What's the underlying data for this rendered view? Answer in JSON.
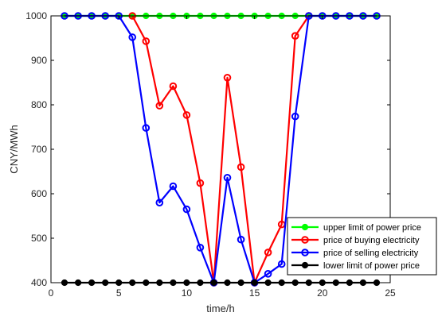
{
  "chart_data": {
    "type": "line",
    "xlabel": "time/h",
    "ylabel": "CNY/MWh",
    "xlim": [
      0,
      25
    ],
    "ylim": [
      400,
      1000
    ],
    "xticks": [
      0,
      5,
      10,
      15,
      20,
      25
    ],
    "yticks": [
      400,
      500,
      600,
      700,
      800,
      900,
      1000
    ],
    "grid": false,
    "legend_position": "bottom-right",
    "series": [
      {
        "name": "upper limit of power price",
        "color": "#00ff00",
        "marker": "filled-circle",
        "x": [
          1,
          2,
          3,
          4,
          5,
          6,
          7,
          8,
          9,
          10,
          11,
          12,
          13,
          14,
          15,
          16,
          17,
          18,
          19,
          20,
          21,
          22,
          23,
          24
        ],
        "y": [
          1000,
          1000,
          1000,
          1000,
          1000,
          1000,
          1000,
          1000,
          1000,
          1000,
          1000,
          1000,
          1000,
          1000,
          1000,
          1000,
          1000,
          1000,
          1000,
          1000,
          1000,
          1000,
          1000,
          1000
        ]
      },
      {
        "name": "price of buying electricity",
        "color": "#ff0000",
        "marker": "open-circle",
        "x": [
          6,
          7,
          8,
          9,
          10,
          11,
          12,
          13,
          14,
          15,
          16,
          17,
          18,
          19
        ],
        "y": [
          1000,
          943,
          798,
          842,
          777,
          624,
          400,
          861,
          660,
          400,
          468,
          531,
          955,
          1000
        ]
      },
      {
        "name": " price of selling electricity",
        "color": "#0000ff",
        "marker": "open-circle",
        "x": [
          1,
          2,
          3,
          4,
          5,
          6,
          7,
          8,
          9,
          10,
          11,
          12,
          13,
          14,
          15,
          16,
          17,
          18,
          19,
          20,
          21,
          22,
          23,
          24
        ],
        "y": [
          1000,
          1000,
          1000,
          1000,
          1000,
          952,
          748,
          580,
          617,
          565,
          479,
          400,
          636,
          497,
          400,
          420,
          442,
          774,
          1000,
          1000,
          1000,
          1000,
          1000,
          1000
        ]
      },
      {
        "name": "lower limit of power price",
        "color": "#000000",
        "marker": "filled-circle",
        "x": [
          1,
          2,
          3,
          4,
          5,
          6,
          7,
          8,
          9,
          10,
          11,
          12,
          13,
          14,
          15,
          16,
          17,
          18,
          19,
          20,
          21,
          22,
          23,
          24
        ],
        "y": [
          400,
          400,
          400,
          400,
          400,
          400,
          400,
          400,
          400,
          400,
          400,
          400,
          400,
          400,
          400,
          400,
          400,
          400,
          400,
          400,
          400,
          400,
          400,
          400
        ]
      }
    ]
  }
}
